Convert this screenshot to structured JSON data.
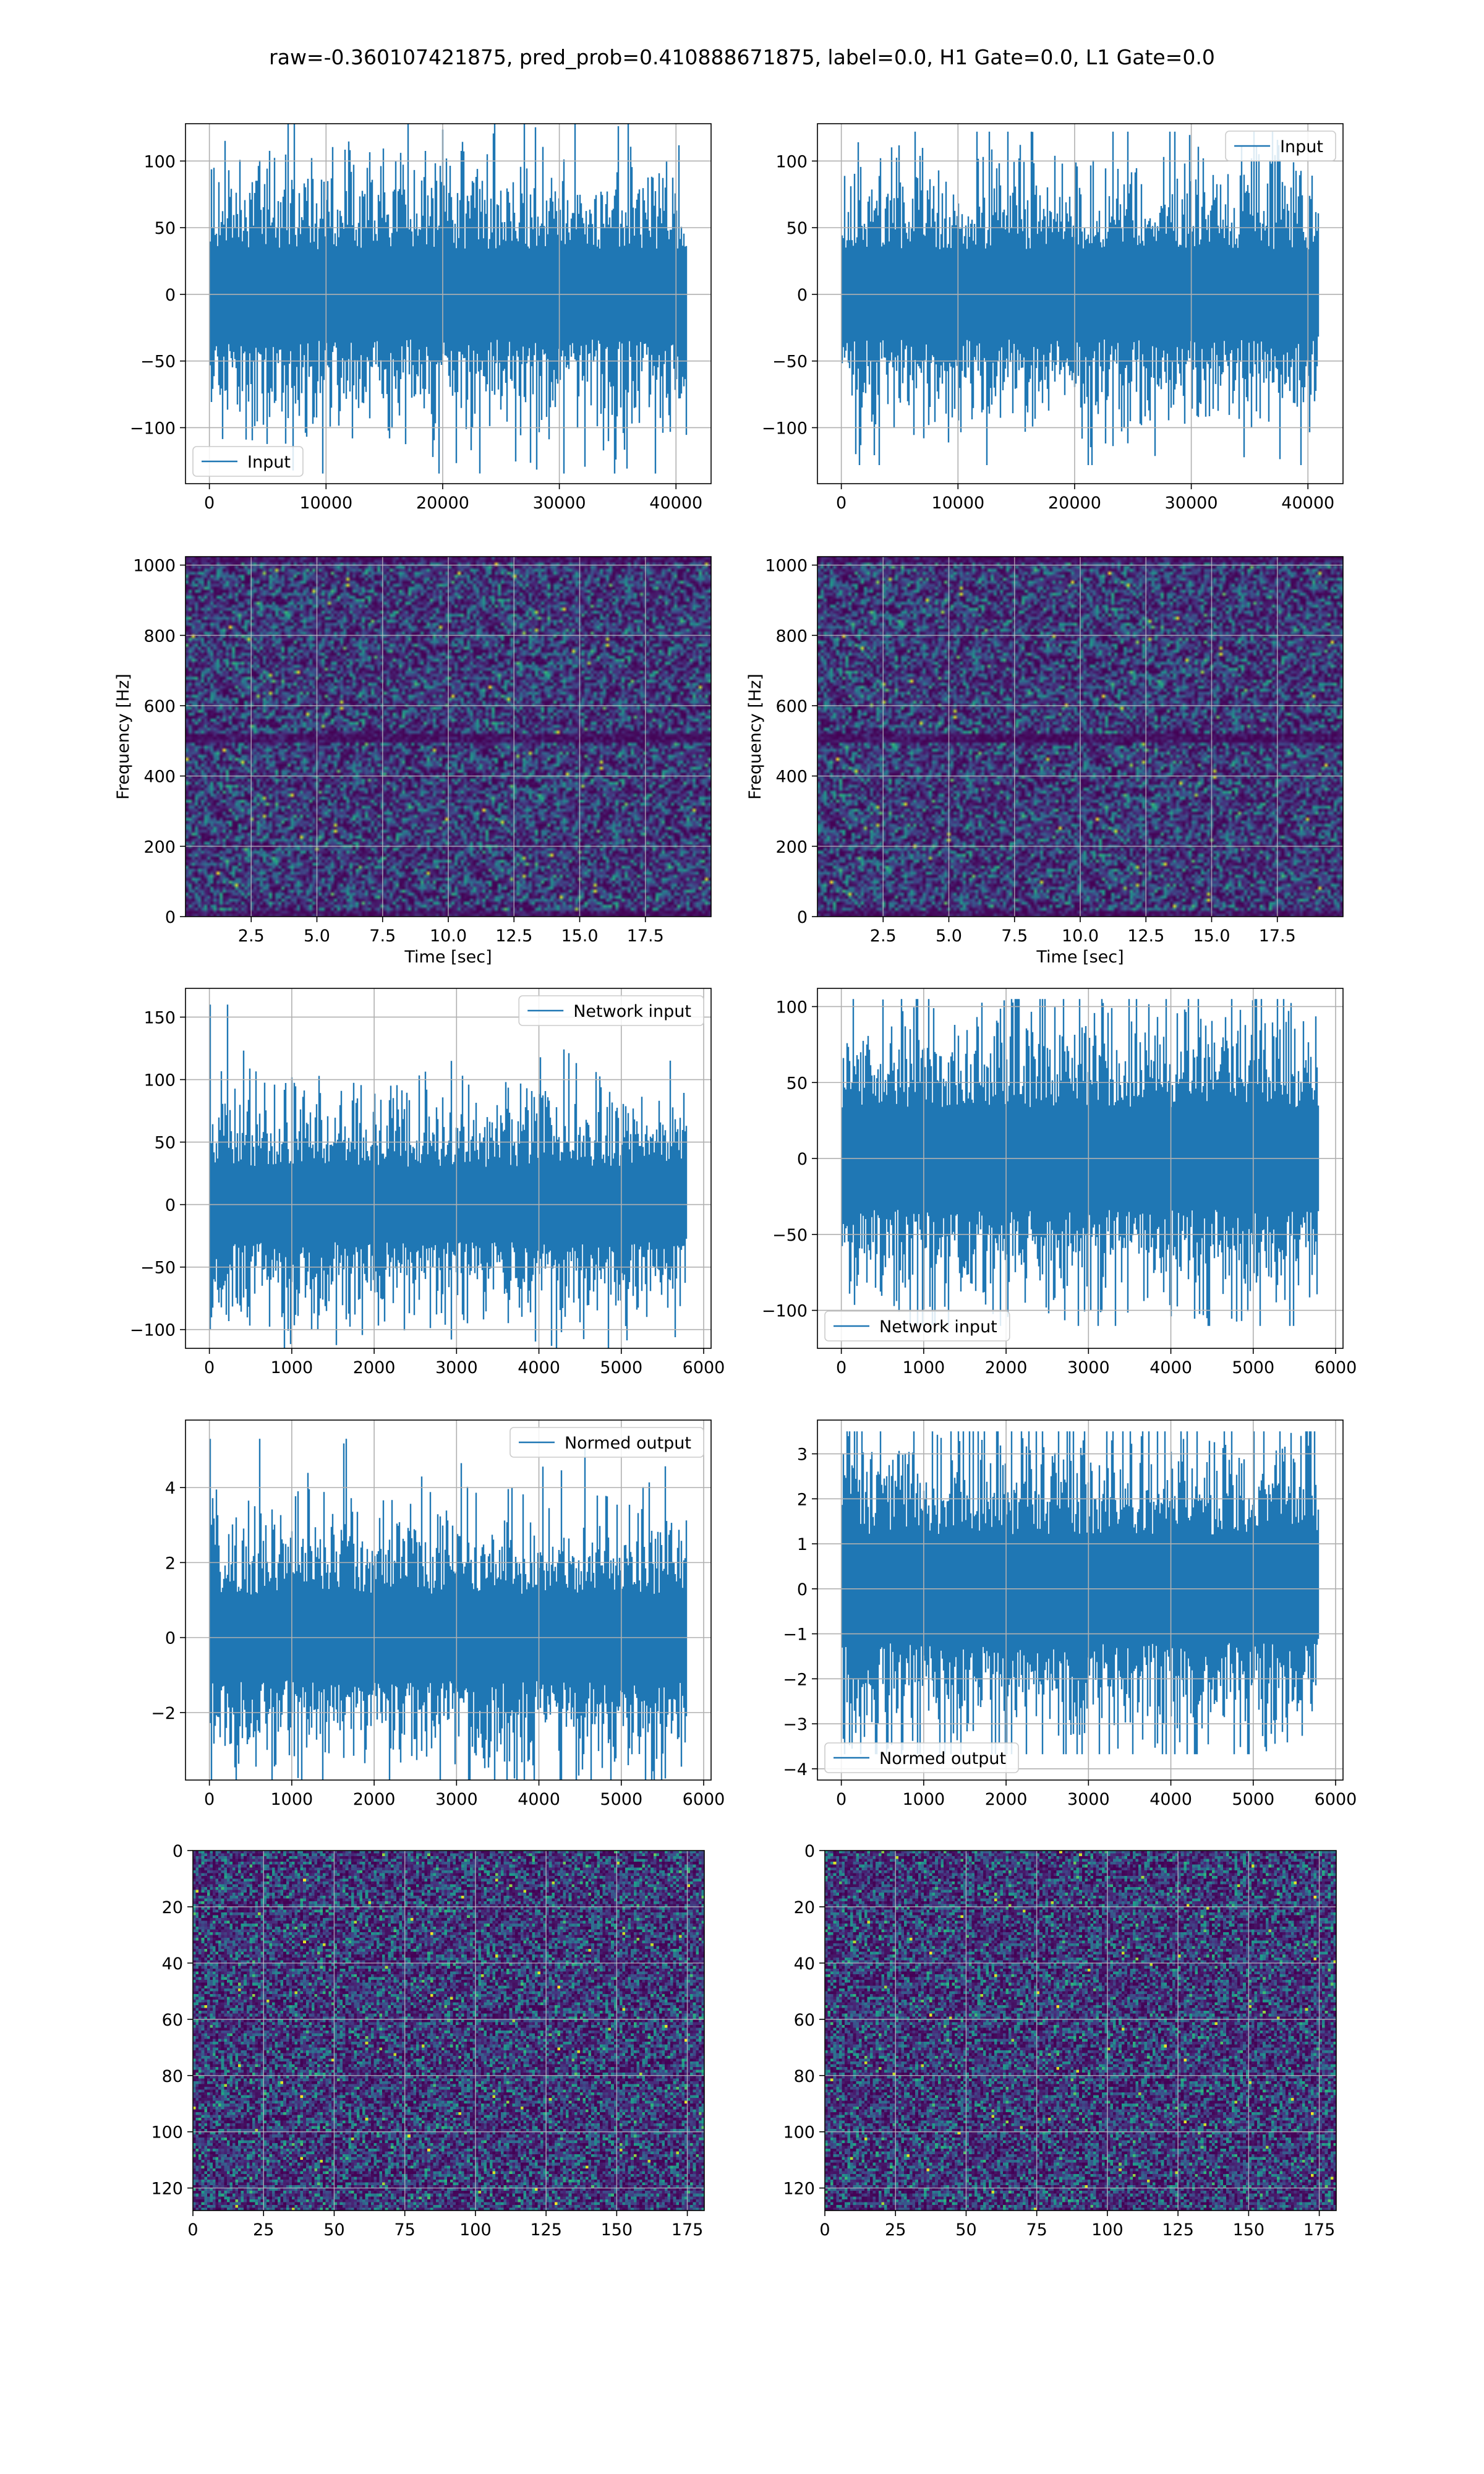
{
  "figure": {
    "suptitle": "raw=-0.360107421875, pred_prob=0.410888671875, label=0.0, H1 Gate=0.0, L1 Gate=0.0"
  },
  "colors": {
    "line": "#1f77b4",
    "grid": "#b0b0b0",
    "colormap": "viridis"
  },
  "chart_data": [
    {
      "id": "input-h1",
      "type": "line",
      "series": [
        {
          "name": "Input",
          "kind": "noise",
          "n": 40960,
          "amplitude_std": 28,
          "peak": 128
        }
      ],
      "xlim": [
        -2048,
        43008
      ],
      "ylim": [
        -142,
        128
      ],
      "xticks": [
        0,
        10000,
        20000,
        30000,
        40000
      ],
      "yticks": [
        -100,
        -50,
        0,
        50,
        100
      ],
      "xlabel": "",
      "ylabel": "",
      "grid": true,
      "legend": "lower left"
    },
    {
      "id": "input-l1",
      "type": "line",
      "series": [
        {
          "name": "Input",
          "kind": "noise",
          "n": 40960,
          "amplitude_std": 28,
          "peak": 122
        }
      ],
      "xlim": [
        -2048,
        43008
      ],
      "ylim": [
        -142,
        128
      ],
      "xticks": [
        0,
        10000,
        20000,
        30000,
        40000
      ],
      "yticks": [
        -100,
        -50,
        0,
        50,
        100
      ],
      "xlabel": "",
      "ylabel": "",
      "grid": true,
      "legend": "upper right"
    },
    {
      "id": "spectrogram-h1",
      "type": "heatmap",
      "xlim": [
        0,
        20
      ],
      "ylim": [
        0,
        1024
      ],
      "xticks": [
        2.5,
        5.0,
        7.5,
        10.0,
        12.5,
        15.0,
        17.5
      ],
      "yticks": [
        0,
        200,
        400,
        600,
        800,
        1000
      ],
      "xlabel": "Time [sec]",
      "ylabel": "Frequency [Hz]",
      "grid": true,
      "colormap": "viridis"
    },
    {
      "id": "spectrogram-l1",
      "type": "heatmap",
      "xlim": [
        0,
        20
      ],
      "ylim": [
        0,
        1024
      ],
      "xticks": [
        2.5,
        5.0,
        7.5,
        10.0,
        12.5,
        15.0,
        17.5
      ],
      "yticks": [
        0,
        200,
        400,
        600,
        800,
        1000
      ],
      "xlabel": "Time [sec]",
      "ylabel": "Frequency [Hz]",
      "grid": true,
      "colormap": "viridis"
    },
    {
      "id": "network-input-h1",
      "type": "line",
      "series": [
        {
          "name": "Network input",
          "kind": "noise",
          "n": 5800,
          "amplitude_std": 25,
          "peak": 160
        }
      ],
      "xlim": [
        -290,
        6090
      ],
      "ylim": [
        -115,
        173
      ],
      "xticks": [
        0,
        1000,
        2000,
        3000,
        4000,
        5000,
        6000
      ],
      "yticks": [
        -100,
        -50,
        0,
        50,
        100,
        150
      ],
      "xlabel": "",
      "ylabel": "",
      "grid": true,
      "legend": "upper right"
    },
    {
      "id": "network-input-l1",
      "type": "line",
      "series": [
        {
          "name": "Network input",
          "kind": "noise",
          "n": 5800,
          "amplitude_std": 28,
          "peak": 105
        }
      ],
      "xlim": [
        -290,
        6090
      ],
      "ylim": [
        -125,
        112
      ],
      "xticks": [
        0,
        1000,
        2000,
        3000,
        4000,
        5000,
        6000
      ],
      "yticks": [
        -100,
        -50,
        0,
        50,
        100
      ],
      "xlabel": "",
      "ylabel": "",
      "grid": true,
      "legend": "lower left"
    },
    {
      "id": "normed-output-h1",
      "type": "line",
      "series": [
        {
          "name": "Normed output",
          "kind": "noise",
          "n": 5800,
          "amplitude_std": 0.95,
          "peak": 5.3
        }
      ],
      "xlim": [
        -290,
        6090
      ],
      "ylim": [
        -3.8,
        5.8
      ],
      "xticks": [
        0,
        1000,
        2000,
        3000,
        4000,
        5000,
        6000
      ],
      "yticks": [
        -2,
        0,
        2,
        4
      ],
      "xlabel": "",
      "ylabel": "",
      "grid": true,
      "legend": "upper right"
    },
    {
      "id": "normed-output-l1",
      "type": "line",
      "series": [
        {
          "name": "Normed output",
          "kind": "noise",
          "n": 5800,
          "amplitude_std": 1.0,
          "peak": 3.5
        }
      ],
      "xlim": [
        -290,
        6090
      ],
      "ylim": [
        -4.25,
        3.75
      ],
      "xticks": [
        0,
        1000,
        2000,
        3000,
        4000,
        5000,
        6000
      ],
      "yticks": [
        -4,
        -3,
        -2,
        -1,
        0,
        1,
        2,
        3
      ],
      "xlabel": "",
      "ylabel": "",
      "grid": true,
      "legend": "lower left"
    },
    {
      "id": "image-h1",
      "type": "heatmap",
      "xlim": [
        0,
        181
      ],
      "ylim": [
        128,
        0
      ],
      "cols": 181,
      "rows": 128,
      "xticks": [
        0,
        25,
        50,
        75,
        100,
        125,
        150,
        175
      ],
      "yticks": [
        0,
        20,
        40,
        60,
        80,
        100,
        120
      ],
      "xlabel": "",
      "ylabel": "",
      "grid": true,
      "colormap": "viridis"
    },
    {
      "id": "image-l1",
      "type": "heatmap",
      "xlim": [
        0,
        181
      ],
      "ylim": [
        128,
        0
      ],
      "cols": 181,
      "rows": 128,
      "xticks": [
        0,
        25,
        50,
        75,
        100,
        125,
        150,
        175
      ],
      "yticks": [
        0,
        20,
        40,
        60,
        80,
        100,
        120
      ],
      "xlabel": "",
      "ylabel": "",
      "grid": true,
      "colormap": "viridis"
    }
  ]
}
